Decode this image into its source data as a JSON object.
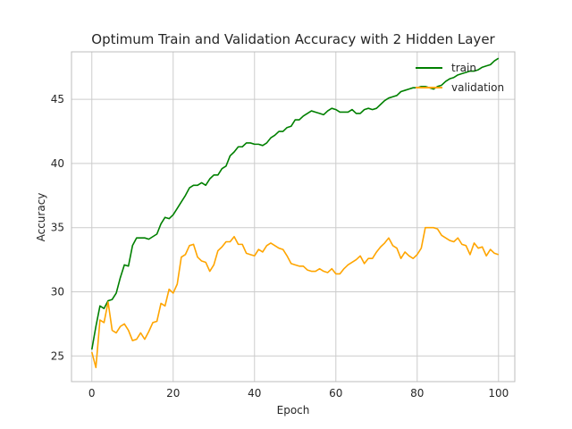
{
  "chart_data": {
    "type": "line",
    "title": "Optimum Train and Validation Accuracy with 2 Hidden Layer",
    "xlabel": "Epoch",
    "ylabel": "Accuracy",
    "xlim": [
      -5,
      104
    ],
    "ylim": [
      23,
      48.7
    ],
    "xticks": [
      0,
      20,
      40,
      60,
      80,
      100
    ],
    "yticks": [
      25,
      30,
      35,
      40,
      45
    ],
    "grid": true,
    "legend_position": "top-right",
    "series": [
      {
        "name": "train",
        "color": "#008000",
        "values": [
          25.5,
          27.3,
          28.9,
          28.7,
          29.3,
          29.4,
          29.9,
          31.1,
          32.1,
          32.0,
          33.6,
          34.2,
          34.2,
          34.2,
          34.1,
          34.3,
          34.5,
          35.3,
          35.8,
          35.7,
          36.0,
          36.5,
          37.0,
          37.5,
          38.1,
          38.3,
          38.3,
          38.5,
          38.3,
          38.8,
          39.1,
          39.1,
          39.6,
          39.8,
          40.6,
          40.9,
          41.3,
          41.3,
          41.6,
          41.6,
          41.5,
          41.5,
          41.4,
          41.6,
          42.0,
          42.2,
          42.5,
          42.5,
          42.8,
          42.9,
          43.4,
          43.4,
          43.7,
          43.9,
          44.1,
          44.0,
          43.9,
          43.8,
          44.1,
          44.3,
          44.2,
          44.0,
          44.0,
          44.0,
          44.2,
          43.9,
          43.9,
          44.2,
          44.3,
          44.2,
          44.3,
          44.6,
          44.9,
          45.1,
          45.2,
          45.3,
          45.6,
          45.7,
          45.8,
          45.9,
          45.9,
          46.0,
          46.0,
          45.9,
          45.8,
          46.0,
          46.1,
          46.4,
          46.6,
          46.7,
          46.9,
          47.0,
          47.1,
          47.2,
          47.2,
          47.3,
          47.5,
          47.6,
          47.7,
          48.0,
          48.2
        ]
      },
      {
        "name": "validation",
        "color": "#ffa500",
        "values": [
          25.3,
          24.1,
          27.8,
          27.6,
          29.2,
          27.0,
          26.8,
          27.3,
          27.5,
          27.0,
          26.2,
          26.3,
          26.8,
          26.3,
          26.9,
          27.6,
          27.7,
          29.1,
          28.9,
          30.2,
          29.9,
          30.6,
          32.7,
          32.9,
          33.6,
          33.7,
          32.7,
          32.4,
          32.3,
          31.6,
          32.1,
          33.2,
          33.5,
          33.9,
          33.9,
          34.3,
          33.7,
          33.7,
          33.0,
          32.9,
          32.8,
          33.3,
          33.1,
          33.6,
          33.8,
          33.6,
          33.4,
          33.3,
          32.8,
          32.2,
          32.1,
          32.0,
          32.0,
          31.7,
          31.6,
          31.6,
          31.8,
          31.6,
          31.5,
          31.8,
          31.4,
          31.4,
          31.8,
          32.1,
          32.3,
          32.5,
          32.8,
          32.2,
          32.6,
          32.6,
          33.1,
          33.5,
          33.8,
          34.2,
          33.6,
          33.4,
          32.6,
          33.1,
          32.8,
          32.6,
          32.9,
          33.4,
          35.0,
          35.0,
          35.0,
          34.9,
          34.4,
          34.2,
          34.0,
          33.9,
          34.2,
          33.7,
          33.6,
          32.9,
          33.8,
          33.4,
          33.5,
          32.8,
          33.3,
          33.0,
          32.9
        ]
      }
    ]
  }
}
